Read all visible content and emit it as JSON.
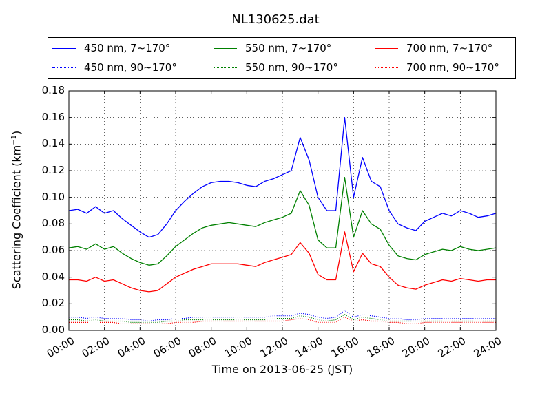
{
  "chart_data": {
    "type": "line",
    "title": "NL130625.dat",
    "xlabel": "Time on 2013-06-25 (JST)",
    "ylabel_main": "Scattering Coefficient (km",
    "ylabel_sup": "−1",
    "ylabel_tail": ")",
    "xlim": [
      0,
      24
    ],
    "ylim": [
      0,
      0.18
    ],
    "x_ticks": [
      "00:00",
      "02:00",
      "04:00",
      "06:00",
      "08:00",
      "10:00",
      "12:00",
      "14:00",
      "16:00",
      "18:00",
      "20:00",
      "22:00",
      "24:00"
    ],
    "y_ticks": [
      "0.00",
      "0.02",
      "0.04",
      "0.06",
      "0.08",
      "0.10",
      "0.12",
      "0.14",
      "0.16",
      "0.18"
    ],
    "grid": true,
    "legend_position": "top",
    "x": [
      0,
      0.5,
      1,
      1.5,
      2,
      2.5,
      3,
      3.5,
      4,
      4.5,
      5,
      5.5,
      6,
      6.5,
      7,
      7.5,
      8,
      8.5,
      9,
      9.5,
      10,
      10.5,
      11,
      11.5,
      12,
      12.5,
      13,
      13.5,
      14,
      14.5,
      15,
      15.5,
      16,
      16.5,
      17,
      17.5,
      18,
      18.5,
      19,
      19.5,
      20,
      20.5,
      21,
      21.5,
      22,
      22.5,
      23,
      23.5,
      24
    ],
    "series": [
      {
        "name": "450 nm, 7∼170°",
        "color": "#0000ff",
        "style": "solid",
        "values": [
          0.09,
          0.091,
          0.088,
          0.093,
          0.088,
          0.09,
          0.084,
          0.079,
          0.074,
          0.07,
          0.072,
          0.08,
          0.09,
          0.097,
          0.103,
          0.108,
          0.111,
          0.112,
          0.112,
          0.111,
          0.109,
          0.108,
          0.112,
          0.114,
          0.117,
          0.12,
          0.145,
          0.128,
          0.1,
          0.09,
          0.09,
          0.16,
          0.1,
          0.13,
          0.112,
          0.108,
          0.09,
          0.08,
          0.077,
          0.075,
          0.082,
          0.085,
          0.088,
          0.086,
          0.09,
          0.088,
          0.085,
          0.086,
          0.088
        ]
      },
      {
        "name": "550 nm, 7∼170°",
        "color": "#008000",
        "style": "solid",
        "values": [
          0.062,
          0.063,
          0.061,
          0.065,
          0.061,
          0.063,
          0.058,
          0.054,
          0.051,
          0.049,
          0.05,
          0.056,
          0.063,
          0.068,
          0.073,
          0.077,
          0.079,
          0.08,
          0.081,
          0.08,
          0.079,
          0.078,
          0.081,
          0.083,
          0.085,
          0.088,
          0.105,
          0.094,
          0.068,
          0.062,
          0.062,
          0.115,
          0.07,
          0.09,
          0.08,
          0.076,
          0.064,
          0.056,
          0.054,
          0.053,
          0.057,
          0.059,
          0.061,
          0.06,
          0.063,
          0.061,
          0.06,
          0.061,
          0.062
        ]
      },
      {
        "name": "700 nm, 7∼170°",
        "color": "#ff0000",
        "style": "solid",
        "values": [
          0.038,
          0.038,
          0.037,
          0.04,
          0.037,
          0.038,
          0.035,
          0.032,
          0.03,
          0.029,
          0.03,
          0.035,
          0.04,
          0.043,
          0.046,
          0.048,
          0.05,
          0.05,
          0.05,
          0.05,
          0.049,
          0.048,
          0.051,
          0.053,
          0.055,
          0.057,
          0.066,
          0.058,
          0.042,
          0.038,
          0.038,
          0.074,
          0.044,
          0.058,
          0.05,
          0.048,
          0.04,
          0.034,
          0.032,
          0.031,
          0.034,
          0.036,
          0.038,
          0.037,
          0.039,
          0.038,
          0.037,
          0.038,
          0.038
        ]
      },
      {
        "name": "450 nm, 90∼170°",
        "color": "#0000ff",
        "style": "dotted",
        "values": [
          0.01,
          0.01,
          0.009,
          0.01,
          0.009,
          0.009,
          0.009,
          0.008,
          0.008,
          0.007,
          0.008,
          0.008,
          0.009,
          0.009,
          0.01,
          0.01,
          0.01,
          0.01,
          0.01,
          0.01,
          0.01,
          0.01,
          0.01,
          0.011,
          0.011,
          0.011,
          0.013,
          0.012,
          0.01,
          0.009,
          0.01,
          0.015,
          0.01,
          0.012,
          0.011,
          0.01,
          0.009,
          0.009,
          0.008,
          0.008,
          0.009,
          0.009,
          0.009,
          0.009,
          0.009,
          0.009,
          0.009,
          0.009,
          0.009
        ]
      },
      {
        "name": "550 nm, 90∼170°",
        "color": "#008000",
        "style": "dotted",
        "values": [
          0.008,
          0.008,
          0.007,
          0.008,
          0.007,
          0.007,
          0.007,
          0.006,
          0.006,
          0.006,
          0.006,
          0.007,
          0.007,
          0.008,
          0.008,
          0.008,
          0.008,
          0.008,
          0.008,
          0.008,
          0.008,
          0.008,
          0.008,
          0.009,
          0.009,
          0.009,
          0.011,
          0.01,
          0.008,
          0.007,
          0.008,
          0.012,
          0.008,
          0.01,
          0.009,
          0.008,
          0.007,
          0.007,
          0.007,
          0.007,
          0.007,
          0.007,
          0.007,
          0.007,
          0.007,
          0.007,
          0.007,
          0.007,
          0.007
        ]
      },
      {
        "name": "700 nm, 90∼170°",
        "color": "#ff0000",
        "style": "dotted",
        "values": [
          0.006,
          0.006,
          0.006,
          0.006,
          0.006,
          0.006,
          0.005,
          0.005,
          0.005,
          0.005,
          0.005,
          0.005,
          0.006,
          0.006,
          0.006,
          0.007,
          0.007,
          0.007,
          0.007,
          0.007,
          0.007,
          0.007,
          0.007,
          0.007,
          0.007,
          0.008,
          0.009,
          0.008,
          0.006,
          0.006,
          0.006,
          0.01,
          0.007,
          0.008,
          0.007,
          0.007,
          0.006,
          0.006,
          0.005,
          0.005,
          0.006,
          0.006,
          0.006,
          0.006,
          0.006,
          0.006,
          0.006,
          0.006,
          0.006
        ]
      }
    ]
  }
}
